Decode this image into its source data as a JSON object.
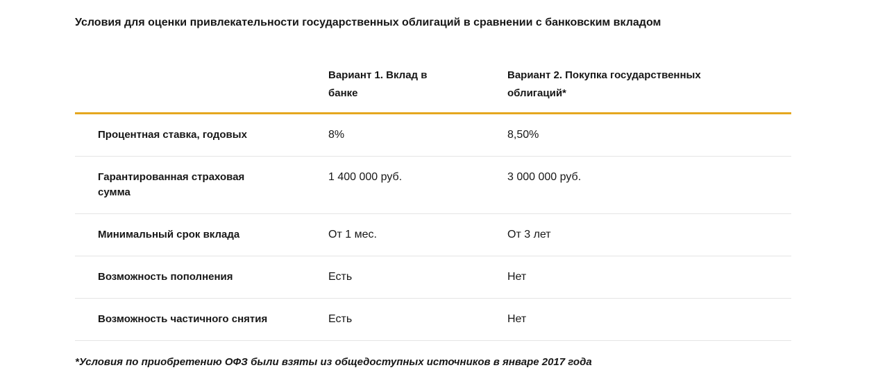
{
  "title": "Условия для оценки привлекательности государственных облигаций в сравнении с банковским вкладом",
  "table": {
    "headers": {
      "label_col": "",
      "option1": "Вариант 1. Вклад в банке",
      "option2": "Вариант 2. Покупка государственных облигаций*"
    },
    "rows": [
      {
        "label": "Процентная ставка, годовых",
        "option1": "8%",
        "option2": "8,50%"
      },
      {
        "label": "Гарантированная страховая сумма",
        "option1": "1 400 000 руб.",
        "option2": "3 000 000 руб."
      },
      {
        "label": "Минимальный срок вклада",
        "option1": "От 1 мес.",
        "option2": "От 3 лет"
      },
      {
        "label": "Возможность пополнения",
        "option1": "Есть",
        "option2": "Нет"
      },
      {
        "label": "Возможность частичного снятия",
        "option1": "Есть",
        "option2": "Нет"
      }
    ]
  },
  "footnote": "*Условия по приобретению ОФЗ были взяты из общедоступных источников в январе 2017 года",
  "colors": {
    "accent_line": "#e5a71f",
    "divider": "#e4e4e4",
    "text": "#171717",
    "background": "#ffffff"
  }
}
